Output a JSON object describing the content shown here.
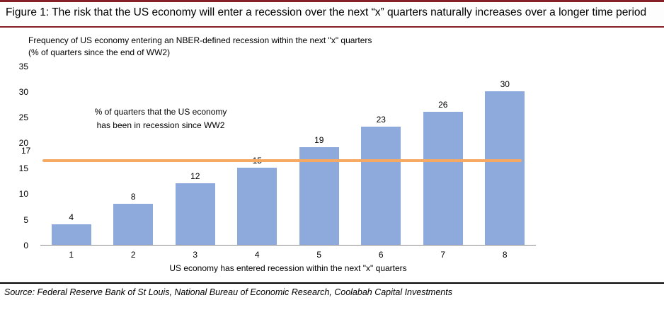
{
  "header": {
    "title": "Figure 1: The risk that the US economy will enter a recession over the next “x” quarters naturally increases over a longer time period"
  },
  "chart": {
    "title_line1": "Frequency of US economy entering an NBER-defined recession within the next \"x\" quarters",
    "title_line2": "(% of quarters since the end of WW2)",
    "bar_color": "#8EA9DB",
    "reference_color": "#F5A962",
    "reference_label": "17",
    "legend_line1": "% of quarters that the US economy",
    "legend_line2": "has been in recession since WW2",
    "xlabel": "US economy has entered recession within the next \"x\" quarters"
  },
  "chart_data": {
    "type": "bar",
    "title": "Frequency of US economy entering an NBER-defined recession within the next \"x\" quarters (% of quarters since the end of WW2)",
    "categories": [
      "1",
      "2",
      "3",
      "4",
      "5",
      "6",
      "7",
      "8"
    ],
    "values": [
      4,
      8,
      12,
      15,
      19,
      23,
      26,
      30
    ],
    "xlabel": "US economy has entered recession within the next \"x\" quarters",
    "ylabel": "% of quarters since the end of WW2",
    "ylim": [
      0,
      35
    ],
    "yticks": [
      0,
      5,
      10,
      15,
      20,
      25,
      30,
      35
    ],
    "grid": false,
    "legend_position": "inside-left",
    "reference_line": {
      "value": 16.5,
      "label": "17",
      "legend": "% of quarters that the US economy has been in recession since WW2"
    }
  },
  "footer": {
    "source": "Source: Federal Reserve Bank of St Louis, National Bureau of Economic Research, Coolabah Capital Investments"
  }
}
